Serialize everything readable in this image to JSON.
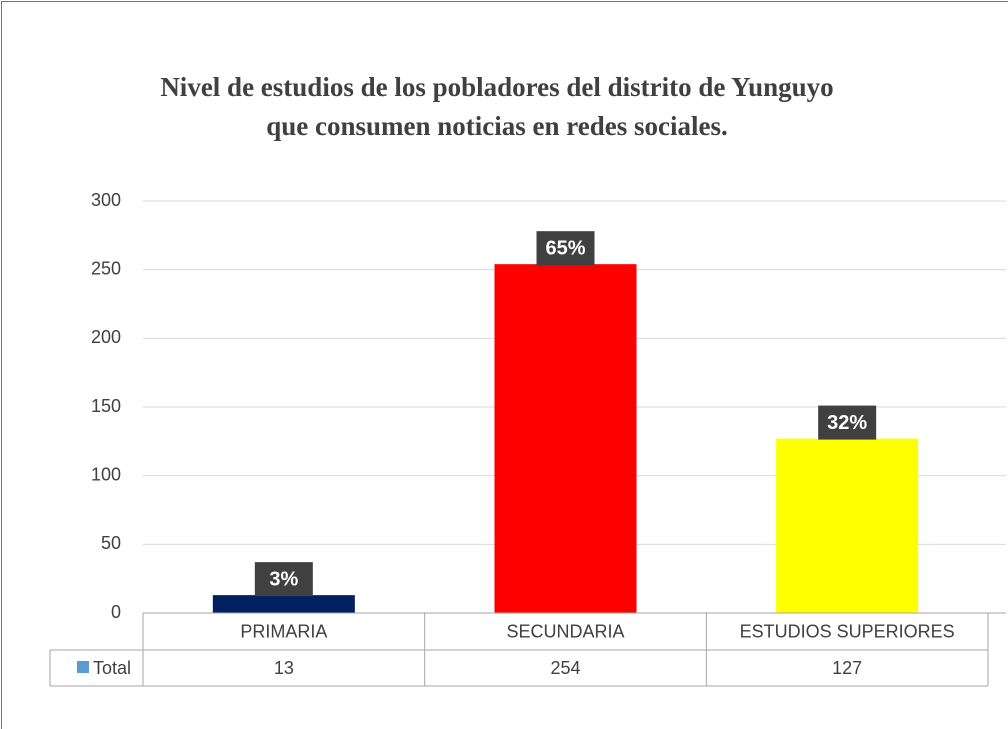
{
  "chart_data": {
    "type": "bar",
    "title": "Nivel de estudios de los pobladores del distrito de Yunguyo que consumen noticias en redes sociales.",
    "categories": [
      "PRIMARIA",
      "SECUNDARIA",
      "ESTUDIOS SUPERIORES"
    ],
    "series": [
      {
        "name": "Total",
        "color": "#5b9bd5",
        "bar_colors": [
          "#002060",
          "#ff0000",
          "#ffff00"
        ],
        "values": [
          13,
          254,
          127
        ]
      }
    ],
    "percentages": {
      "values": [
        3,
        65,
        32
      ],
      "value_labels": [
        "3%",
        "65%",
        "32%"
      ]
    },
    "ylim": [
      0,
      300
    ],
    "yticks": [
      0,
      50,
      100,
      150,
      200,
      250,
      300
    ],
    "grid": true,
    "data_table": true
  }
}
